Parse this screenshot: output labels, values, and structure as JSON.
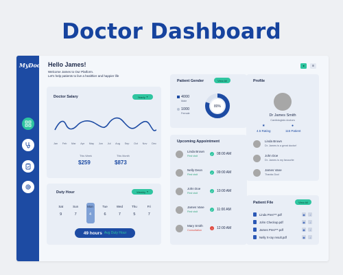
{
  "poster_title": "Doctor Dashboard",
  "app": {
    "logo": "MyDoc"
  },
  "header": {
    "greeting": "Hello James!",
    "welcome": "Welcome James to Our Platform.",
    "tagline": "Let's help patients to live a healthier and happier life",
    "btn_a": "■",
    "btn_b": "☰"
  },
  "salary": {
    "title": "Doctor Salary",
    "filter": "Yearly",
    "months": [
      "Jan",
      "Feb",
      "Mar",
      "Apr",
      "May",
      "Jun",
      "Jul",
      "Aug",
      "Sep",
      "Oct",
      "Nov",
      "Dec"
    ],
    "this_week_label": "This Week",
    "this_week_value": "$259",
    "this_month_label": "This Month",
    "this_month_value": "$873"
  },
  "duty": {
    "title": "Duty Hour",
    "filter": "Weekly",
    "days": [
      {
        "name": "Sat",
        "num": "9"
      },
      {
        "name": "Sun",
        "num": "7"
      },
      {
        "name": "Mon",
        "num": "4"
      },
      {
        "name": "Tue",
        "num": "6"
      },
      {
        "name": "Wed",
        "num": "7"
      },
      {
        "name": "Thu",
        "num": "5"
      },
      {
        "name": "Fri",
        "num": "7"
      }
    ],
    "hours_label": "49 hours",
    "avg_label": "Avg Duty Hour"
  },
  "gender": {
    "title": "Patient Gender",
    "view": "View All",
    "male_count": "4000",
    "male_label": "Male",
    "female_count": "1000",
    "female_label": "Female",
    "percent": "80%",
    "percent_value": 80,
    "colors": {
      "male": "#1d4ba3",
      "female": "#d9e1ee"
    }
  },
  "appointments": {
    "title": "Upcoming Appointment",
    "items": [
      {
        "name": "Linda Brown",
        "type": "First visit",
        "time": "08:00 AM",
        "status": "ok"
      },
      {
        "name": "Nelly Deon",
        "type": "First visit",
        "time": "09:00 AM",
        "status": "ok"
      },
      {
        "name": "John Doe",
        "type": "First visit",
        "time": "10:00 AM",
        "status": "ok"
      },
      {
        "name": "James Vane",
        "type": "First visit",
        "time": "11:00 AM",
        "status": "ok"
      },
      {
        "name": "Mary Smith",
        "type": "Consultation",
        "time": "12:00 AM",
        "status": "alert"
      }
    ]
  },
  "profile": {
    "title": "Profile",
    "name": "Dr James Smith",
    "role": "Cardiologists doctors",
    "rating": "4.5 Rating",
    "patients": "115 Patient",
    "reviews": [
      {
        "name": "Linda Brown",
        "text": "Dr. James is a great doctor!"
      },
      {
        "name": "John Doe",
        "text": "Dr. James is my favourite"
      },
      {
        "name": "James Vane",
        "text": "Thanks Doc!"
      }
    ]
  },
  "files": {
    "title": "Patient File",
    "view": "View All",
    "items": [
      "Linda Pres***.pdf",
      "John Checkup.pdf",
      "James Pres***.pdf",
      "Nelly X-ray result.pdf"
    ]
  }
}
